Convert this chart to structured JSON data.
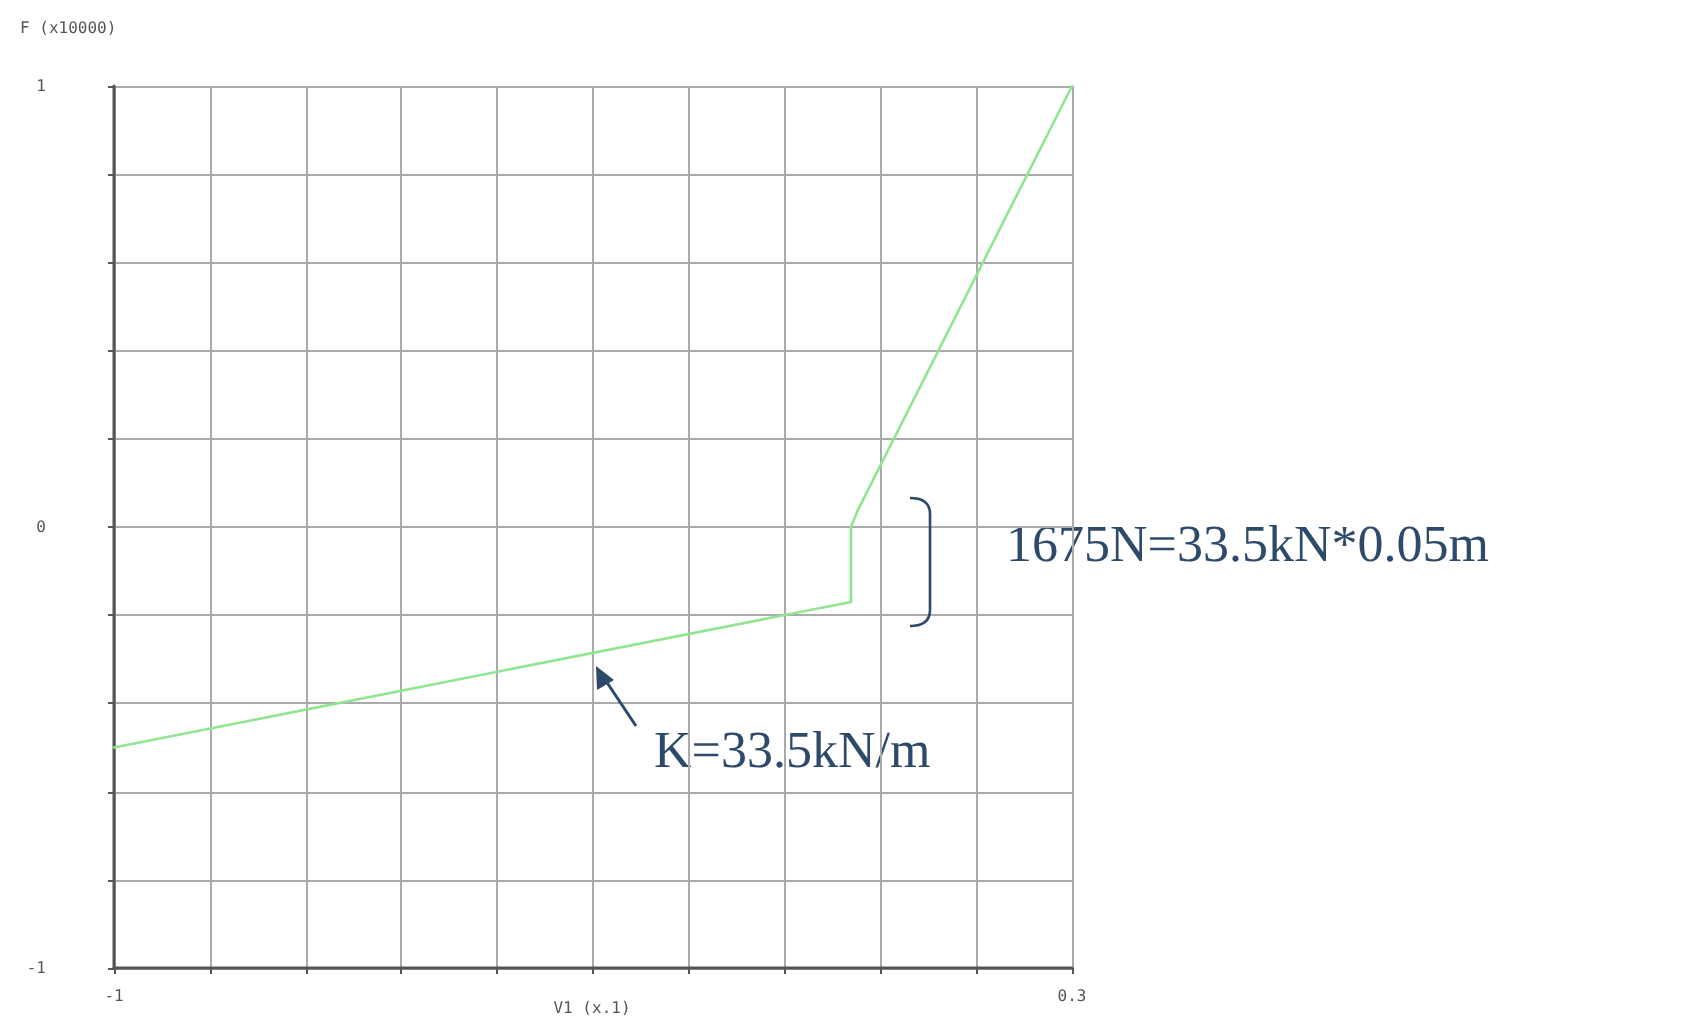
{
  "chart_data": {
    "type": "line",
    "xlabel": "V1 (x.1)",
    "ylabel": "F (x10000)",
    "x": [
      -1,
      0,
      0,
      0.009,
      0.3
    ],
    "series": [
      {
        "color": "#8fe68f",
        "values": [
          -0.5,
          -0.17,
          0,
          0.037,
          1
        ]
      }
    ],
    "xlim": [
      -1,
      0.3
    ],
    "xticks": [
      -1,
      {
        "value": -0.87,
        "label": null
      },
      {
        "value": -0.74,
        "label": null
      },
      {
        "value": -0.61,
        "label": null
      },
      {
        "value": -0.48,
        "label": null
      },
      {
        "value": -0.35,
        "label": null
      },
      {
        "value": -0.22,
        "label": null
      },
      {
        "value": -0.09,
        "label": null
      },
      {
        "value": 0.04,
        "label": null
      },
      {
        "value": 0.17,
        "label": null
      },
      0.3
    ],
    "ylim": [
      -1,
      1
    ],
    "yticks": [
      -1,
      {
        "value": -0.8,
        "label": null
      },
      {
        "value": -0.6,
        "label": null
      },
      {
        "value": -0.4,
        "label": null
      },
      {
        "value": -0.2,
        "label": null
      },
      0,
      {
        "value": 0.2,
        "label": null
      },
      {
        "value": 0.4,
        "label": null
      },
      {
        "value": 0.6,
        "label": null
      },
      {
        "value": 0.8,
        "label": null
      },
      1
    ],
    "grid": true,
    "marker": "none",
    "line_style": "solid",
    "annotations": [
      "1675N=33.5kN*0.05m",
      "K=33.5kN/m"
    ]
  }
}
